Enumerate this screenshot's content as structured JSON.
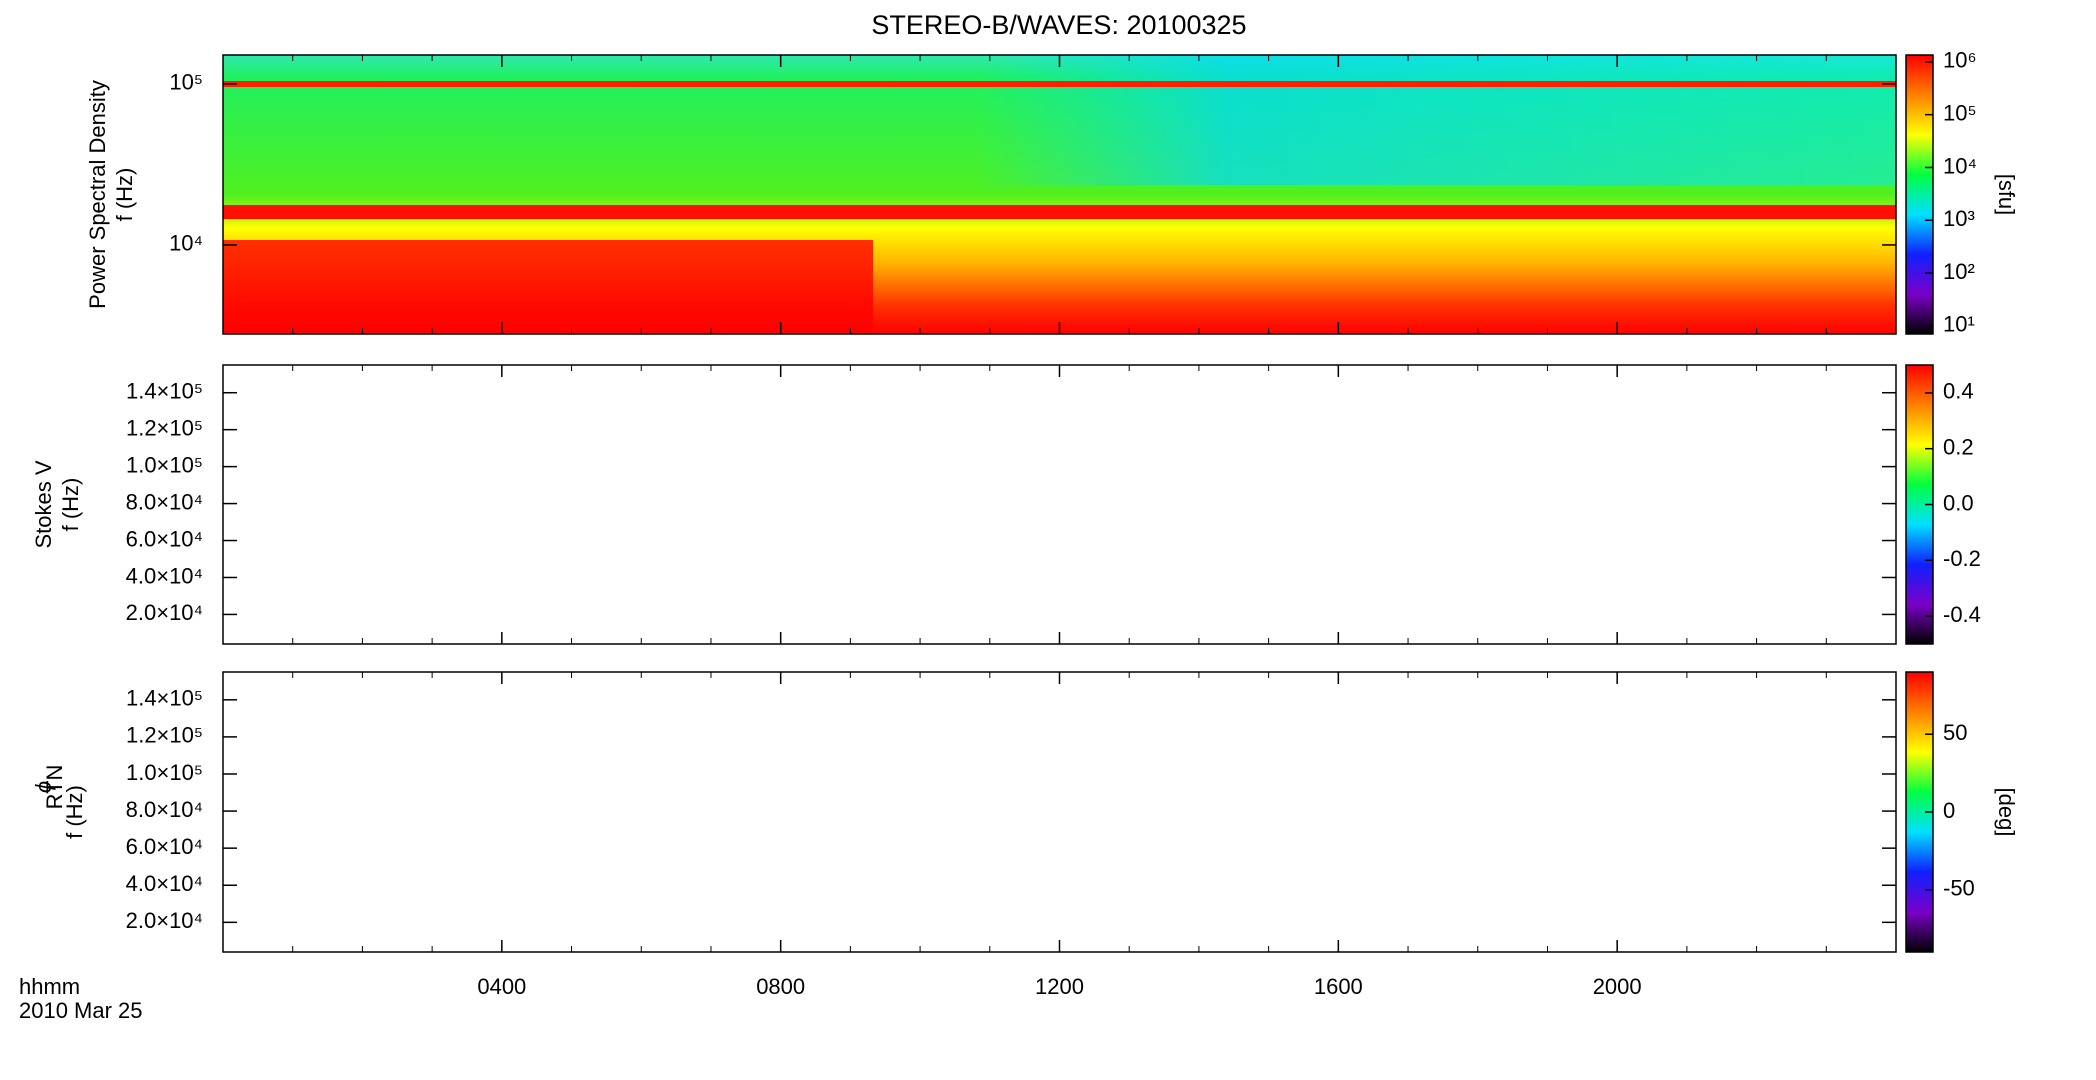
{
  "colormap": [
    "#000000",
    "#7a00c8",
    "#1020ff",
    "#00e0ff",
    "#00ff40",
    "#ffff00",
    "#ff8000",
    "#ff0000"
  ],
  "chart_data": [
    {
      "type": "heatmap",
      "title": "STEREO-B/WAVES: 20100325",
      "ylabel": [
        "Power Spectral Density",
        "f (Hz)"
      ],
      "ylog": true,
      "ylim": [
        2800,
        151000
      ],
      "yticks": [
        {
          "value": 10000,
          "label": "10⁴"
        },
        {
          "value": 100000,
          "label": "10⁵"
        }
      ],
      "colorbar": {
        "log": true,
        "clim": [
          7,
          1350000
        ],
        "label": "[sfu]",
        "cticks": [
          {
            "value": 10,
            "label": "10¹"
          },
          {
            "value": 100,
            "label": "10²"
          },
          {
            "value": 1000,
            "label": "10³"
          },
          {
            "value": 10000,
            "label": "10⁴"
          },
          {
            "value": 100000,
            "label": "10⁵"
          },
          {
            "value": 1000000,
            "label": "10⁶"
          }
        ]
      }
    },
    {
      "type": "heatmap",
      "ylabel": [
        "Stokes V",
        "f (Hz)"
      ],
      "ylog": false,
      "ylim": [
        4000,
        155000
      ],
      "yticks": [
        {
          "value": 20000,
          "label": "2.0×10⁴"
        },
        {
          "value": 40000,
          "label": "4.0×10⁴"
        },
        {
          "value": 60000,
          "label": "6.0×10⁴"
        },
        {
          "value": 80000,
          "label": "8.0×10⁴"
        },
        {
          "value": 100000,
          "label": "1.0×10⁵"
        },
        {
          "value": 120000,
          "label": "1.2×10⁵"
        },
        {
          "value": 140000,
          "label": "1.4×10⁵"
        }
      ],
      "colorbar": {
        "log": false,
        "clim": [
          -0.5,
          0.5
        ],
        "cticks": [
          -0.4,
          -0.2,
          {
            "value": 0,
            "label": "0.0"
          },
          0.2,
          0.4
        ]
      }
    },
    {
      "type": "heatmap",
      "ylabel": [
        "ϕ",
        "RTN",
        "f (Hz)"
      ],
      "ylog": false,
      "ylim": [
        4000,
        155000
      ],
      "yticks": [
        {
          "value": 20000,
          "label": "2.0×10⁴"
        },
        {
          "value": 40000,
          "label": "4.0×10⁴"
        },
        {
          "value": 60000,
          "label": "6.0×10⁴"
        },
        {
          "value": 80000,
          "label": "8.0×10⁴"
        },
        {
          "value": 100000,
          "label": "1.0×10⁵"
        },
        {
          "value": 120000,
          "label": "1.2×10⁵"
        },
        {
          "value": 140000,
          "label": "1.4×10⁵"
        }
      ],
      "colorbar": {
        "log": false,
        "clim": [
          -90,
          90
        ],
        "label": "[deg]",
        "cticks": [
          -50,
          0,
          50
        ]
      },
      "xlim": [
        0,
        24
      ],
      "xticks": [
        {
          "value": 4,
          "label": "0400"
        },
        {
          "value": 8,
          "label": "0800"
        },
        {
          "value": 12,
          "label": "1200"
        },
        {
          "value": 16,
          "label": "1600"
        },
        {
          "value": 20,
          "label": "2000"
        }
      ],
      "xlabel": [
        "hhmm",
        "2010 Mar 25"
      ]
    }
  ]
}
